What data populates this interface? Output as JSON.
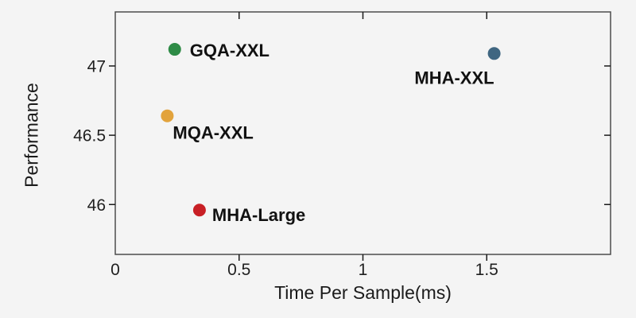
{
  "figure": {
    "background_color": "#f4f4f4",
    "spine_color": "#4c4c4c",
    "tick_color": "#1a1a1a",
    "text_color": "#1b1b1b"
  },
  "chart_data": {
    "type": "scatter",
    "title": "",
    "xlabel": "Time Per Sample(ms)",
    "ylabel": "Performance",
    "xlim": [
      0,
      2.0
    ],
    "ylim": [
      45.64,
      47.39
    ],
    "grid": false,
    "legend_position": "none (points labeled inline)",
    "xticks": {
      "values": [
        0,
        0.5,
        1,
        1.5
      ],
      "labels": [
        "0",
        "0.5",
        "1",
        "1.5"
      ]
    },
    "yticks": {
      "values": [
        46,
        46.5,
        47
      ],
      "labels": [
        "46",
        "46.5",
        "47"
      ]
    },
    "points": [
      {
        "name": "GQA-XXL",
        "x": 0.24,
        "y": 47.12,
        "color": "#2e8b46"
      },
      {
        "name": "MQA-XXL",
        "x": 0.21,
        "y": 46.64,
        "color": "#e2a33c"
      },
      {
        "name": "MHA-Large",
        "x": 0.34,
        "y": 45.96,
        "color": "#c81f25"
      },
      {
        "name": "MHA-XXL",
        "x": 1.53,
        "y": 47.09,
        "color": "#3f6681"
      }
    ]
  }
}
